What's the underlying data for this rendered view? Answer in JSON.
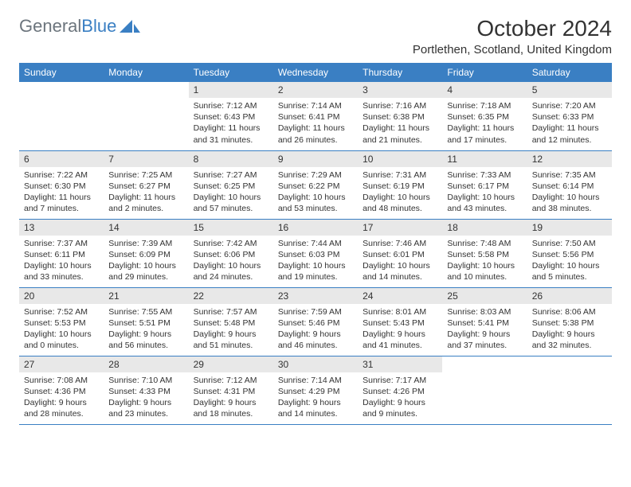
{
  "branding": {
    "logo_text_1": "General",
    "logo_text_2": "Blue",
    "logo_fill": "#3a7fc3"
  },
  "header": {
    "title": "October 2024",
    "location": "Portlethen, Scotland, United Kingdom"
  },
  "colors": {
    "header_bg": "#3a7fc3",
    "header_text": "#ffffff",
    "daynum_bg": "#e8e8e8",
    "text": "#333333",
    "row_border": "#3a7fc3"
  },
  "day_labels": [
    "Sunday",
    "Monday",
    "Tuesday",
    "Wednesday",
    "Thursday",
    "Friday",
    "Saturday"
  ],
  "weeks": [
    [
      null,
      null,
      {
        "n": "1",
        "sr": "Sunrise: 7:12 AM",
        "ss": "Sunset: 6:43 PM",
        "d1": "Daylight: 11 hours",
        "d2": "and 31 minutes."
      },
      {
        "n": "2",
        "sr": "Sunrise: 7:14 AM",
        "ss": "Sunset: 6:41 PM",
        "d1": "Daylight: 11 hours",
        "d2": "and 26 minutes."
      },
      {
        "n": "3",
        "sr": "Sunrise: 7:16 AM",
        "ss": "Sunset: 6:38 PM",
        "d1": "Daylight: 11 hours",
        "d2": "and 21 minutes."
      },
      {
        "n": "4",
        "sr": "Sunrise: 7:18 AM",
        "ss": "Sunset: 6:35 PM",
        "d1": "Daylight: 11 hours",
        "d2": "and 17 minutes."
      },
      {
        "n": "5",
        "sr": "Sunrise: 7:20 AM",
        "ss": "Sunset: 6:33 PM",
        "d1": "Daylight: 11 hours",
        "d2": "and 12 minutes."
      }
    ],
    [
      {
        "n": "6",
        "sr": "Sunrise: 7:22 AM",
        "ss": "Sunset: 6:30 PM",
        "d1": "Daylight: 11 hours",
        "d2": "and 7 minutes."
      },
      {
        "n": "7",
        "sr": "Sunrise: 7:25 AM",
        "ss": "Sunset: 6:27 PM",
        "d1": "Daylight: 11 hours",
        "d2": "and 2 minutes."
      },
      {
        "n": "8",
        "sr": "Sunrise: 7:27 AM",
        "ss": "Sunset: 6:25 PM",
        "d1": "Daylight: 10 hours",
        "d2": "and 57 minutes."
      },
      {
        "n": "9",
        "sr": "Sunrise: 7:29 AM",
        "ss": "Sunset: 6:22 PM",
        "d1": "Daylight: 10 hours",
        "d2": "and 53 minutes."
      },
      {
        "n": "10",
        "sr": "Sunrise: 7:31 AM",
        "ss": "Sunset: 6:19 PM",
        "d1": "Daylight: 10 hours",
        "d2": "and 48 minutes."
      },
      {
        "n": "11",
        "sr": "Sunrise: 7:33 AM",
        "ss": "Sunset: 6:17 PM",
        "d1": "Daylight: 10 hours",
        "d2": "and 43 minutes."
      },
      {
        "n": "12",
        "sr": "Sunrise: 7:35 AM",
        "ss": "Sunset: 6:14 PM",
        "d1": "Daylight: 10 hours",
        "d2": "and 38 minutes."
      }
    ],
    [
      {
        "n": "13",
        "sr": "Sunrise: 7:37 AM",
        "ss": "Sunset: 6:11 PM",
        "d1": "Daylight: 10 hours",
        "d2": "and 33 minutes."
      },
      {
        "n": "14",
        "sr": "Sunrise: 7:39 AM",
        "ss": "Sunset: 6:09 PM",
        "d1": "Daylight: 10 hours",
        "d2": "and 29 minutes."
      },
      {
        "n": "15",
        "sr": "Sunrise: 7:42 AM",
        "ss": "Sunset: 6:06 PM",
        "d1": "Daylight: 10 hours",
        "d2": "and 24 minutes."
      },
      {
        "n": "16",
        "sr": "Sunrise: 7:44 AM",
        "ss": "Sunset: 6:03 PM",
        "d1": "Daylight: 10 hours",
        "d2": "and 19 minutes."
      },
      {
        "n": "17",
        "sr": "Sunrise: 7:46 AM",
        "ss": "Sunset: 6:01 PM",
        "d1": "Daylight: 10 hours",
        "d2": "and 14 minutes."
      },
      {
        "n": "18",
        "sr": "Sunrise: 7:48 AM",
        "ss": "Sunset: 5:58 PM",
        "d1": "Daylight: 10 hours",
        "d2": "and 10 minutes."
      },
      {
        "n": "19",
        "sr": "Sunrise: 7:50 AM",
        "ss": "Sunset: 5:56 PM",
        "d1": "Daylight: 10 hours",
        "d2": "and 5 minutes."
      }
    ],
    [
      {
        "n": "20",
        "sr": "Sunrise: 7:52 AM",
        "ss": "Sunset: 5:53 PM",
        "d1": "Daylight: 10 hours",
        "d2": "and 0 minutes."
      },
      {
        "n": "21",
        "sr": "Sunrise: 7:55 AM",
        "ss": "Sunset: 5:51 PM",
        "d1": "Daylight: 9 hours",
        "d2": "and 56 minutes."
      },
      {
        "n": "22",
        "sr": "Sunrise: 7:57 AM",
        "ss": "Sunset: 5:48 PM",
        "d1": "Daylight: 9 hours",
        "d2": "and 51 minutes."
      },
      {
        "n": "23",
        "sr": "Sunrise: 7:59 AM",
        "ss": "Sunset: 5:46 PM",
        "d1": "Daylight: 9 hours",
        "d2": "and 46 minutes."
      },
      {
        "n": "24",
        "sr": "Sunrise: 8:01 AM",
        "ss": "Sunset: 5:43 PM",
        "d1": "Daylight: 9 hours",
        "d2": "and 41 minutes."
      },
      {
        "n": "25",
        "sr": "Sunrise: 8:03 AM",
        "ss": "Sunset: 5:41 PM",
        "d1": "Daylight: 9 hours",
        "d2": "and 37 minutes."
      },
      {
        "n": "26",
        "sr": "Sunrise: 8:06 AM",
        "ss": "Sunset: 5:38 PM",
        "d1": "Daylight: 9 hours",
        "d2": "and 32 minutes."
      }
    ],
    [
      {
        "n": "27",
        "sr": "Sunrise: 7:08 AM",
        "ss": "Sunset: 4:36 PM",
        "d1": "Daylight: 9 hours",
        "d2": "and 28 minutes."
      },
      {
        "n": "28",
        "sr": "Sunrise: 7:10 AM",
        "ss": "Sunset: 4:33 PM",
        "d1": "Daylight: 9 hours",
        "d2": "and 23 minutes."
      },
      {
        "n": "29",
        "sr": "Sunrise: 7:12 AM",
        "ss": "Sunset: 4:31 PM",
        "d1": "Daylight: 9 hours",
        "d2": "and 18 minutes."
      },
      {
        "n": "30",
        "sr": "Sunrise: 7:14 AM",
        "ss": "Sunset: 4:29 PM",
        "d1": "Daylight: 9 hours",
        "d2": "and 14 minutes."
      },
      {
        "n": "31",
        "sr": "Sunrise: 7:17 AM",
        "ss": "Sunset: 4:26 PM",
        "d1": "Daylight: 9 hours",
        "d2": "and 9 minutes."
      },
      null,
      null
    ]
  ]
}
